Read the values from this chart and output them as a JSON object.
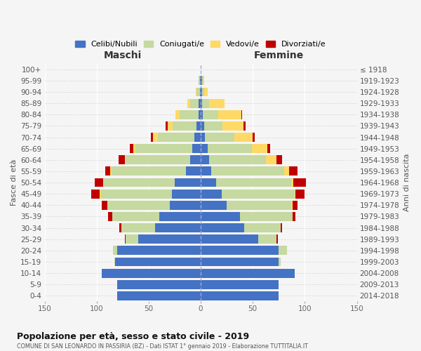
{
  "age_groups": [
    "0-4",
    "5-9",
    "10-14",
    "15-19",
    "20-24",
    "25-29",
    "30-34",
    "35-39",
    "40-44",
    "45-49",
    "50-54",
    "55-59",
    "60-64",
    "65-69",
    "70-74",
    "75-79",
    "80-84",
    "85-89",
    "90-94",
    "95-99",
    "100+"
  ],
  "birth_years": [
    "2014-2018",
    "2009-2013",
    "2004-2008",
    "1999-2003",
    "1994-1998",
    "1989-1993",
    "1984-1988",
    "1979-1983",
    "1974-1978",
    "1969-1973",
    "1964-1968",
    "1959-1963",
    "1954-1958",
    "1949-1953",
    "1944-1948",
    "1939-1943",
    "1934-1938",
    "1929-1933",
    "1924-1928",
    "1919-1923",
    "≤ 1918"
  ],
  "maschi": {
    "celibi": [
      80,
      80,
      95,
      82,
      80,
      60,
      44,
      40,
      30,
      28,
      25,
      14,
      10,
      8,
      6,
      4,
      2,
      2,
      1,
      1,
      0
    ],
    "coniugati": [
      0,
      0,
      0,
      1,
      4,
      12,
      32,
      45,
      60,
      68,
      68,
      72,
      62,
      55,
      35,
      23,
      18,
      8,
      3,
      1,
      0
    ],
    "vedovi": [
      0,
      0,
      0,
      0,
      0,
      0,
      0,
      0,
      0,
      1,
      1,
      1,
      1,
      2,
      5,
      5,
      4,
      3,
      1,
      0,
      0
    ],
    "divorziati": [
      0,
      0,
      0,
      0,
      0,
      1,
      2,
      4,
      5,
      8,
      8,
      5,
      6,
      3,
      2,
      2,
      0,
      0,
      0,
      0,
      0
    ]
  },
  "femmine": {
    "nubili": [
      75,
      75,
      90,
      75,
      75,
      55,
      42,
      38,
      25,
      20,
      15,
      10,
      8,
      7,
      4,
      3,
      2,
      1,
      1,
      1,
      0
    ],
    "coniugate": [
      0,
      0,
      0,
      2,
      8,
      18,
      35,
      50,
      62,
      70,
      72,
      70,
      55,
      42,
      28,
      18,
      15,
      7,
      2,
      1,
      0
    ],
    "vedove": [
      0,
      0,
      0,
      0,
      0,
      0,
      0,
      0,
      1,
      1,
      2,
      5,
      10,
      15,
      18,
      20,
      22,
      15,
      4,
      1,
      0
    ],
    "divorziate": [
      0,
      0,
      0,
      0,
      0,
      1,
      1,
      3,
      5,
      9,
      12,
      8,
      5,
      3,
      2,
      2,
      1,
      0,
      0,
      0,
      0
    ]
  },
  "colors": {
    "celibi": "#4472C4",
    "coniugati": "#c5d9a0",
    "vedovi": "#FFD966",
    "divorziati": "#C00000"
  },
  "title": "Popolazione per età, sesso e stato civile - 2019",
  "subtitle": "COMUNE DI SAN LEONARDO IN PASSIRIA (BZ) - Dati ISTAT 1° gennaio 2019 - Elaborazione TUTTITALIA.IT",
  "xlabel_left": "Maschi",
  "xlabel_right": "Femmine",
  "ylabel_left": "Fasce di età",
  "ylabel_right": "Anni di nascita",
  "xlim": 150,
  "legend_labels": [
    "Celibi/Nubili",
    "Coniugati/e",
    "Vedovi/e",
    "Divorziati/e"
  ],
  "bg_color": "#f5f5f5",
  "grid_color_h": "#dddddd",
  "center_line_color": "#aaaacc"
}
